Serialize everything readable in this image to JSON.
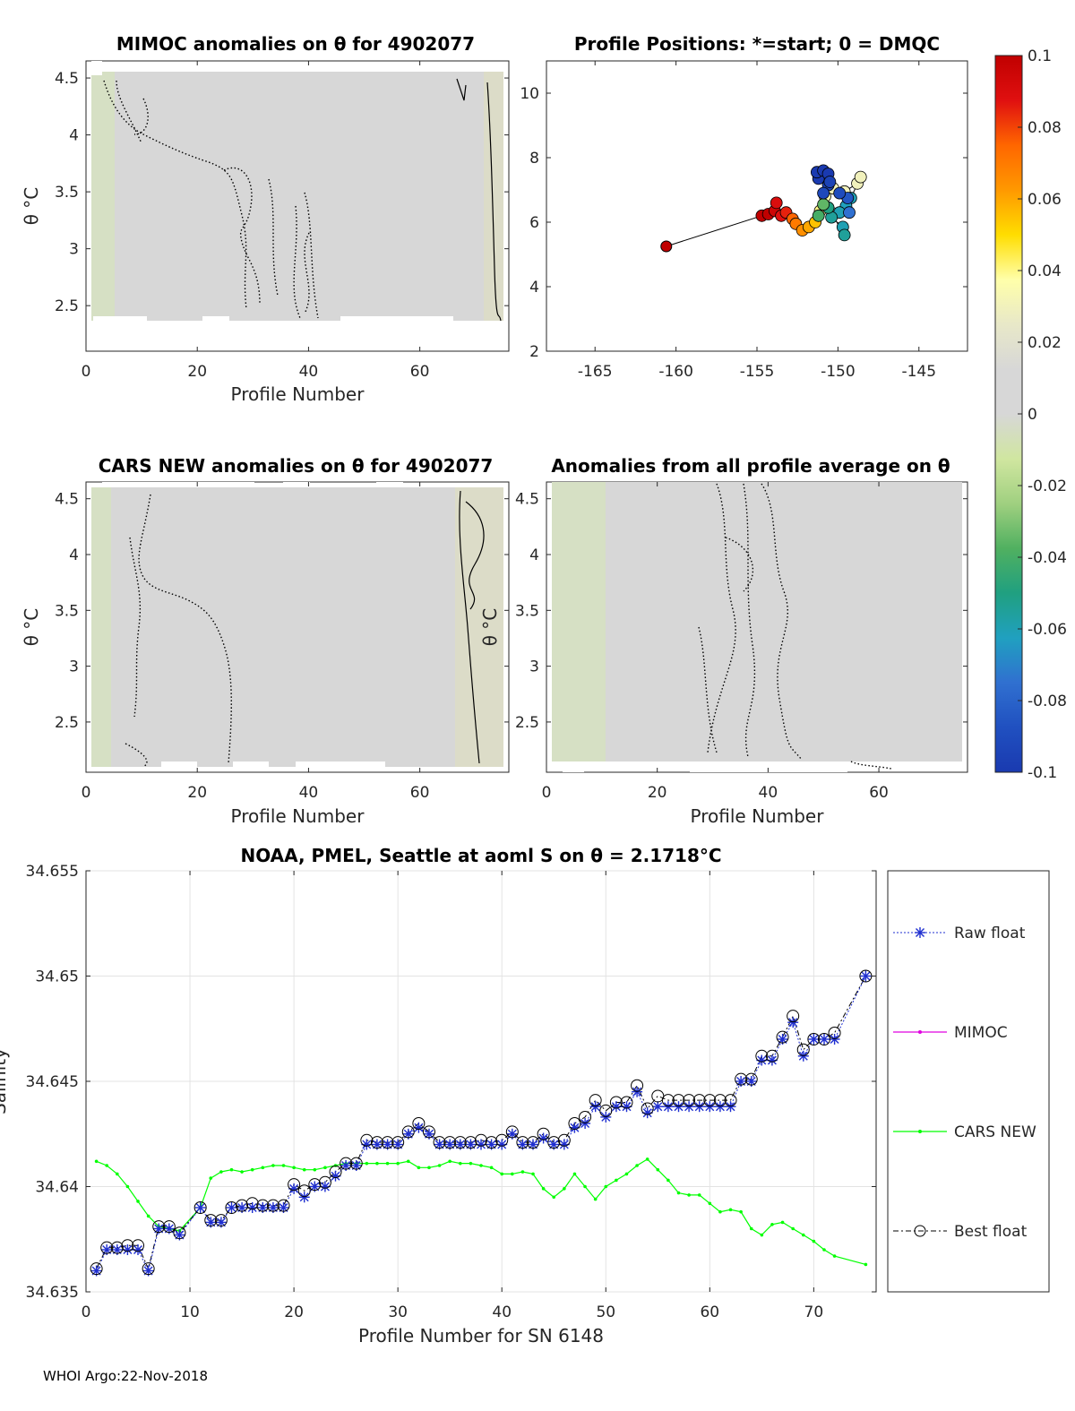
{
  "footer": "WHOI Argo:22-Nov-2018",
  "colors": {
    "background_gray": "#d7d7d7",
    "raw": "#1f2fd0",
    "mimoc": "#e000e0",
    "cars": "#00ff00",
    "best": "#000000",
    "axis": "#262626"
  },
  "colorbar": {
    "ticks": [
      "0.1",
      "0.08",
      "0.06",
      "0.04",
      "0.02",
      "0",
      "-0.02",
      "-0.04",
      "-0.06",
      "-0.08",
      "-0.1"
    ],
    "values": [
      0.1,
      0.08,
      0.06,
      0.04,
      0.02,
      0,
      -0.02,
      -0.04,
      -0.06,
      -0.08,
      -0.1
    ],
    "stops": [
      "#c00000",
      "#e01010",
      "#ff6600",
      "#ff9900",
      "#ffdd00",
      "#ffffaa",
      "#e8e8c8",
      "#d7d7d7",
      "#d7d7d7",
      "#d0e6a0",
      "#a0d080",
      "#50b060",
      "#20a080",
      "#20a0c0",
      "#3070d0",
      "#2050c0",
      "#1a3ab0"
    ]
  },
  "chart_data": [
    {
      "id": "mimoc",
      "type": "heatmap",
      "title": "MIMOC anomalies on θ  for 4902077",
      "xlabel": "Profile Number",
      "ylabel": "θ °C",
      "xlim": [
        0,
        76
      ],
      "ylim": [
        2.1,
        4.65
      ],
      "xticks": [
        0,
        20,
        40,
        60
      ],
      "yticks": [
        2.5,
        3,
        3.5,
        4,
        4.5
      ]
    },
    {
      "id": "positions",
      "type": "scatter",
      "title": "Profile Positions: *=start; 0 = DMQC",
      "xlim": [
        -168,
        -142
      ],
      "ylim": [
        2,
        11
      ],
      "xticks": [
        -165,
        -160,
        -155,
        -150,
        -145
      ],
      "yticks": [
        2,
        4,
        6,
        8,
        10
      ],
      "start": {
        "lon": -160.6,
        "lat": 5.25
      },
      "points": [
        {
          "lon": -154.7,
          "lat": 6.2,
          "value": 0.1
        },
        {
          "lon": -154.3,
          "lat": 6.25,
          "value": 0.1
        },
        {
          "lon": -153.9,
          "lat": 6.35,
          "value": 0.095
        },
        {
          "lon": -153.8,
          "lat": 6.6,
          "value": 0.09
        },
        {
          "lon": -153.5,
          "lat": 6.2,
          "value": 0.088
        },
        {
          "lon": -153.2,
          "lat": 6.3,
          "value": 0.085
        },
        {
          "lon": -152.8,
          "lat": 6.1,
          "value": 0.075
        },
        {
          "lon": -152.6,
          "lat": 5.95,
          "value": 0.07
        },
        {
          "lon": -152.2,
          "lat": 5.75,
          "value": 0.065
        },
        {
          "lon": -151.8,
          "lat": 5.85,
          "value": 0.06
        },
        {
          "lon": -151.4,
          "lat": 6.0,
          "value": 0.055
        },
        {
          "lon": -151.1,
          "lat": 6.35,
          "value": 0.04
        },
        {
          "lon": -150.8,
          "lat": 6.8,
          "value": 0.035
        },
        {
          "lon": -150.3,
          "lat": 7.05,
          "value": 0.03
        },
        {
          "lon": -149.6,
          "lat": 6.95,
          "value": 0.03
        },
        {
          "lon": -148.8,
          "lat": 7.2,
          "value": 0.03
        },
        {
          "lon": -148.6,
          "lat": 7.4,
          "value": 0.03
        },
        {
          "lon": -149.2,
          "lat": 6.75,
          "value": -0.06
        },
        {
          "lon": -149.5,
          "lat": 6.5,
          "value": -0.062
        },
        {
          "lon": -149.9,
          "lat": 6.3,
          "value": -0.06
        },
        {
          "lon": -150.4,
          "lat": 6.15,
          "value": -0.055
        },
        {
          "lon": -149.7,
          "lat": 5.85,
          "value": -0.06
        },
        {
          "lon": -149.6,
          "lat": 5.6,
          "value": -0.055
        },
        {
          "lon": -150.6,
          "lat": 6.45,
          "value": -0.05
        },
        {
          "lon": -151.2,
          "lat": 6.2,
          "value": -0.04
        },
        {
          "lon": -150.9,
          "lat": 6.55,
          "value": -0.035
        },
        {
          "lon": -149.3,
          "lat": 6.3,
          "value": -0.075
        },
        {
          "lon": -149.4,
          "lat": 6.75,
          "value": -0.085
        },
        {
          "lon": -149.9,
          "lat": 6.9,
          "value": -0.09
        },
        {
          "lon": -150.6,
          "lat": 7.15,
          "value": -0.095
        },
        {
          "lon": -151.2,
          "lat": 7.35,
          "value": -0.1
        },
        {
          "lon": -151.3,
          "lat": 7.55,
          "value": -0.1
        },
        {
          "lon": -150.9,
          "lat": 7.6,
          "value": -0.1
        },
        {
          "lon": -150.6,
          "lat": 7.5,
          "value": -0.1
        },
        {
          "lon": -150.5,
          "lat": 7.25,
          "value": -0.095
        },
        {
          "lon": -150.9,
          "lat": 6.9,
          "value": -0.092
        }
      ]
    },
    {
      "id": "cars",
      "type": "heatmap",
      "title": "CARS NEW anomalies on θ for 4902077",
      "xlabel": "Profile Number",
      "ylabel": "θ °C",
      "xlim": [
        0,
        76
      ],
      "ylim": [
        2.05,
        4.65
      ],
      "xticks": [
        0,
        20,
        40,
        60
      ],
      "yticks": [
        2.5,
        3,
        3.5,
        4,
        4.5
      ]
    },
    {
      "id": "avg",
      "type": "heatmap",
      "title": "Anomalies from all profile average on θ",
      "xlabel": "Profile Number",
      "ylabel": "θ °C",
      "xlim": [
        0,
        76
      ],
      "ylim": [
        2.05,
        4.65
      ],
      "xticks": [
        0,
        20,
        40,
        60
      ],
      "yticks": [
        2.5,
        3,
        3.5,
        4,
        4.5
      ]
    },
    {
      "id": "salinity",
      "type": "line",
      "title": "NOAA, PMEL, Seattle at aoml S on θ = 2.1718°C",
      "xlabel": "Profile Number for SN 6148",
      "ylabel": "Salinity",
      "xlim": [
        0,
        76
      ],
      "ylim": [
        34.635,
        34.655
      ],
      "xticks": [
        0,
        10,
        20,
        30,
        40,
        50,
        60,
        70
      ],
      "yticks": [
        34.635,
        34.64,
        34.645,
        34.65,
        34.655
      ],
      "grid": true,
      "legend": [
        "Raw float",
        "MIMOC",
        "CARS NEW",
        "Best float"
      ],
      "x": [
        1,
        2,
        3,
        4,
        5,
        6,
        7,
        8,
        9,
        11,
        12,
        13,
        14,
        15,
        16,
        17,
        18,
        19,
        20,
        21,
        22,
        23,
        24,
        25,
        26,
        27,
        28,
        29,
        30,
        31,
        32,
        33,
        34,
        35,
        36,
        37,
        38,
        39,
        40,
        41,
        42,
        43,
        44,
        45,
        46,
        47,
        48,
        49,
        50,
        51,
        52,
        53,
        54,
        55,
        56,
        57,
        58,
        59,
        60,
        61,
        62,
        63,
        64,
        65,
        66,
        67,
        68,
        69,
        70,
        71,
        72,
        75
      ],
      "series": [
        {
          "name": "Raw float",
          "values": [
            34.636,
            34.637,
            34.637,
            34.637,
            34.637,
            34.636,
            34.638,
            34.638,
            34.6377,
            34.639,
            34.6383,
            34.6383,
            34.639,
            34.639,
            34.639,
            34.639,
            34.639,
            34.639,
            34.6399,
            34.6395,
            34.64,
            34.64,
            34.6405,
            34.641,
            34.641,
            34.642,
            34.642,
            34.642,
            34.642,
            34.6425,
            34.6428,
            34.6425,
            34.642,
            34.642,
            34.642,
            34.642,
            34.642,
            34.642,
            34.642,
            34.6425,
            34.642,
            34.642,
            34.6423,
            34.642,
            34.642,
            34.6428,
            34.643,
            34.6438,
            34.6433,
            34.6438,
            34.6438,
            34.6445,
            34.6435,
            34.6438,
            34.6438,
            34.6438,
            34.6438,
            34.6438,
            34.6438,
            34.6438,
            34.6438,
            34.645,
            34.645,
            34.646,
            34.646,
            34.647,
            34.6478,
            34.6462,
            34.647,
            34.647,
            34.647,
            34.65
          ]
        },
        {
          "name": "CARS NEW",
          "values": [
            34.6412,
            34.641,
            34.6406,
            34.64,
            34.6393,
            34.6386,
            34.6381,
            34.638,
            34.6379,
            34.639,
            34.6404,
            34.6407,
            34.6408,
            34.6407,
            34.6408,
            34.6409,
            34.641,
            34.641,
            34.6409,
            34.6408,
            34.6408,
            34.6409,
            34.641,
            34.6411,
            34.6411,
            34.6411,
            34.6411,
            34.6411,
            34.6411,
            34.6412,
            34.6409,
            34.6409,
            34.641,
            34.6412,
            34.6411,
            34.6411,
            34.641,
            34.6409,
            34.6406,
            34.6406,
            34.6407,
            34.6406,
            34.6399,
            34.6395,
            34.6399,
            34.6406,
            34.64,
            34.6394,
            34.64,
            34.6403,
            34.6406,
            34.641,
            34.6413,
            34.6408,
            34.6403,
            34.6397,
            34.6396,
            34.6396,
            34.6392,
            34.6388,
            34.6389,
            34.6388,
            34.638,
            34.6377,
            34.6382,
            34.6383,
            34.638,
            34.6377,
            34.6374,
            34.637,
            34.6367,
            34.6363
          ]
        },
        {
          "name": "Best float",
          "values": [
            34.6361,
            34.6371,
            34.6371,
            34.6372,
            34.6372,
            34.6361,
            34.6381,
            34.6381,
            34.6378,
            34.639,
            34.6384,
            34.6384,
            34.639,
            34.6391,
            34.6392,
            34.6391,
            34.6391,
            34.6391,
            34.6401,
            34.6398,
            34.6401,
            34.6402,
            34.6407,
            34.6411,
            34.6411,
            34.6422,
            34.6421,
            34.6421,
            34.6421,
            34.6426,
            34.643,
            34.6426,
            34.6421,
            34.6421,
            34.6421,
            34.6421,
            34.6422,
            34.6421,
            34.6422,
            34.6426,
            34.6421,
            34.6421,
            34.6425,
            34.6421,
            34.6422,
            34.643,
            34.6433,
            34.6441,
            34.6436,
            34.644,
            34.644,
            34.6448,
            34.6437,
            34.6443,
            34.6441,
            34.6441,
            34.6441,
            34.6441,
            34.6441,
            34.6441,
            34.6441,
            34.6451,
            34.6451,
            34.6462,
            34.6462,
            34.6471,
            34.6481,
            34.6465,
            34.647,
            34.647,
            34.6473,
            34.65
          ]
        }
      ]
    }
  ]
}
